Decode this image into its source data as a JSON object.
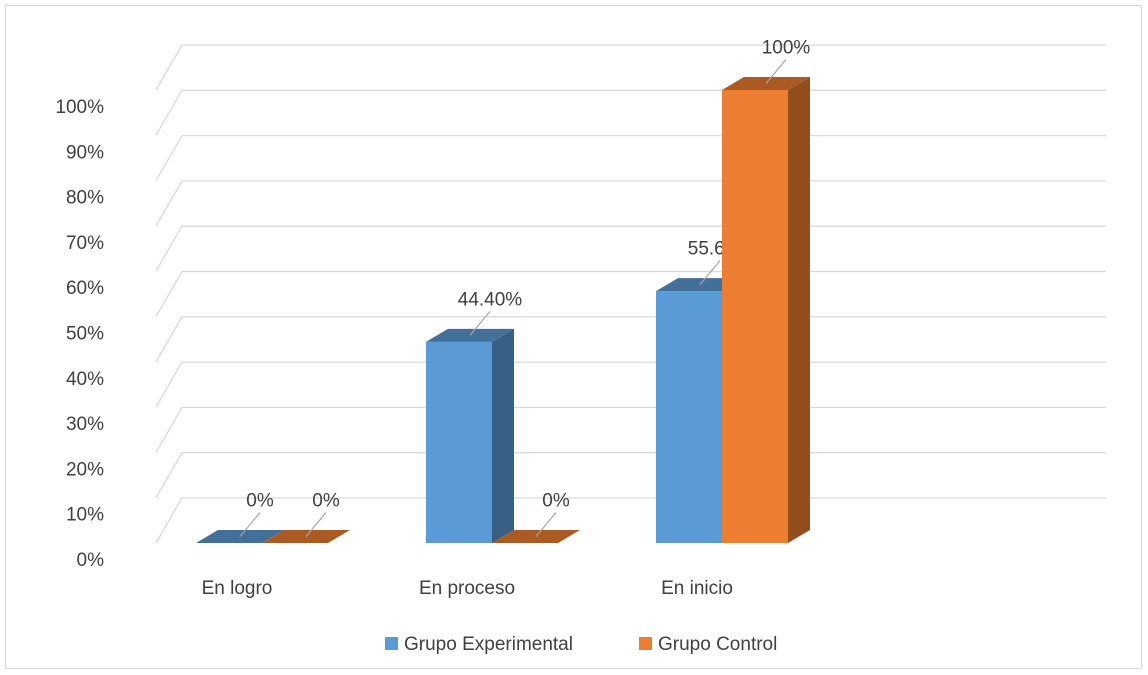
{
  "chart_data": {
    "type": "bar",
    "title": "",
    "xlabel": "",
    "ylabel": "",
    "categories": [
      "En logro",
      "En proceso",
      "En inicio"
    ],
    "series": [
      {
        "name": "Grupo Experimental",
        "values": [
          0,
          44.4,
          55.6
        ],
        "labels": [
          "0%",
          "44.40%",
          "55.60%"
        ],
        "color": "#5b9bd5"
      },
      {
        "name": "Grupo Control",
        "values": [
          0,
          0,
          100
        ],
        "labels": [
          "0%",
          "0%",
          "100%"
        ],
        "color": "#ed7d31"
      }
    ],
    "ylim": [
      0,
      100
    ],
    "yticks": [
      "0%",
      "10%",
      "20%",
      "30%",
      "40%",
      "50%",
      "60%",
      "70%",
      "80%",
      "90%",
      "100%"
    ],
    "grid": true,
    "style": "3d-column",
    "legend_position": "bottom"
  }
}
